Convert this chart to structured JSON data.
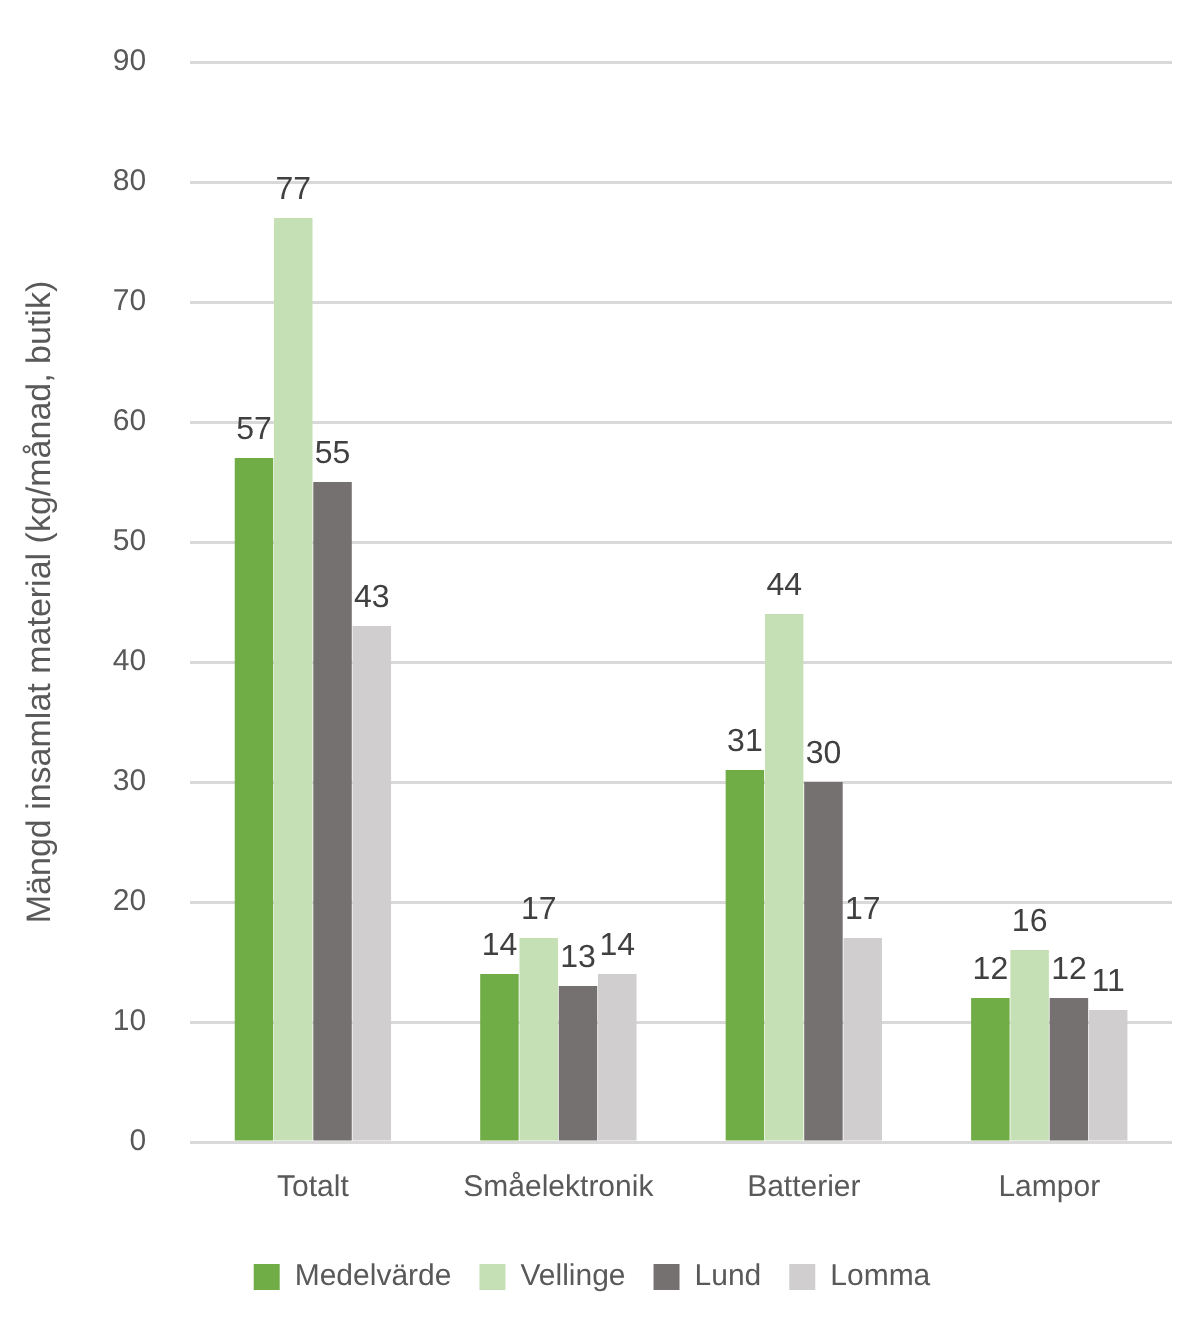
{
  "chart_data": {
    "type": "bar",
    "categories": [
      "Totalt",
      "Småelektronik",
      "Batterier",
      "Lampor"
    ],
    "series": [
      {
        "name": "Medelvärde",
        "color": "#70ad47",
        "values": [
          57,
          14,
          31,
          12
        ]
      },
      {
        "name": "Vellinge",
        "color": "#c5e0b4",
        "values": [
          77,
          17,
          44,
          16
        ]
      },
      {
        "name": "Lund",
        "color": "#767171",
        "values": [
          55,
          13,
          30,
          12
        ]
      },
      {
        "name": "Lomma",
        "color": "#d0cece",
        "values": [
          43,
          14,
          17,
          11
        ]
      }
    ],
    "ylabel": "Mängd insamlat material (kg/månad, butik)",
    "ylim": [
      0,
      90
    ],
    "yticks": [
      0,
      10,
      20,
      30,
      40,
      50,
      60,
      70,
      80,
      90
    ],
    "grid": "y",
    "legend": "bottom",
    "data_labels": true
  }
}
